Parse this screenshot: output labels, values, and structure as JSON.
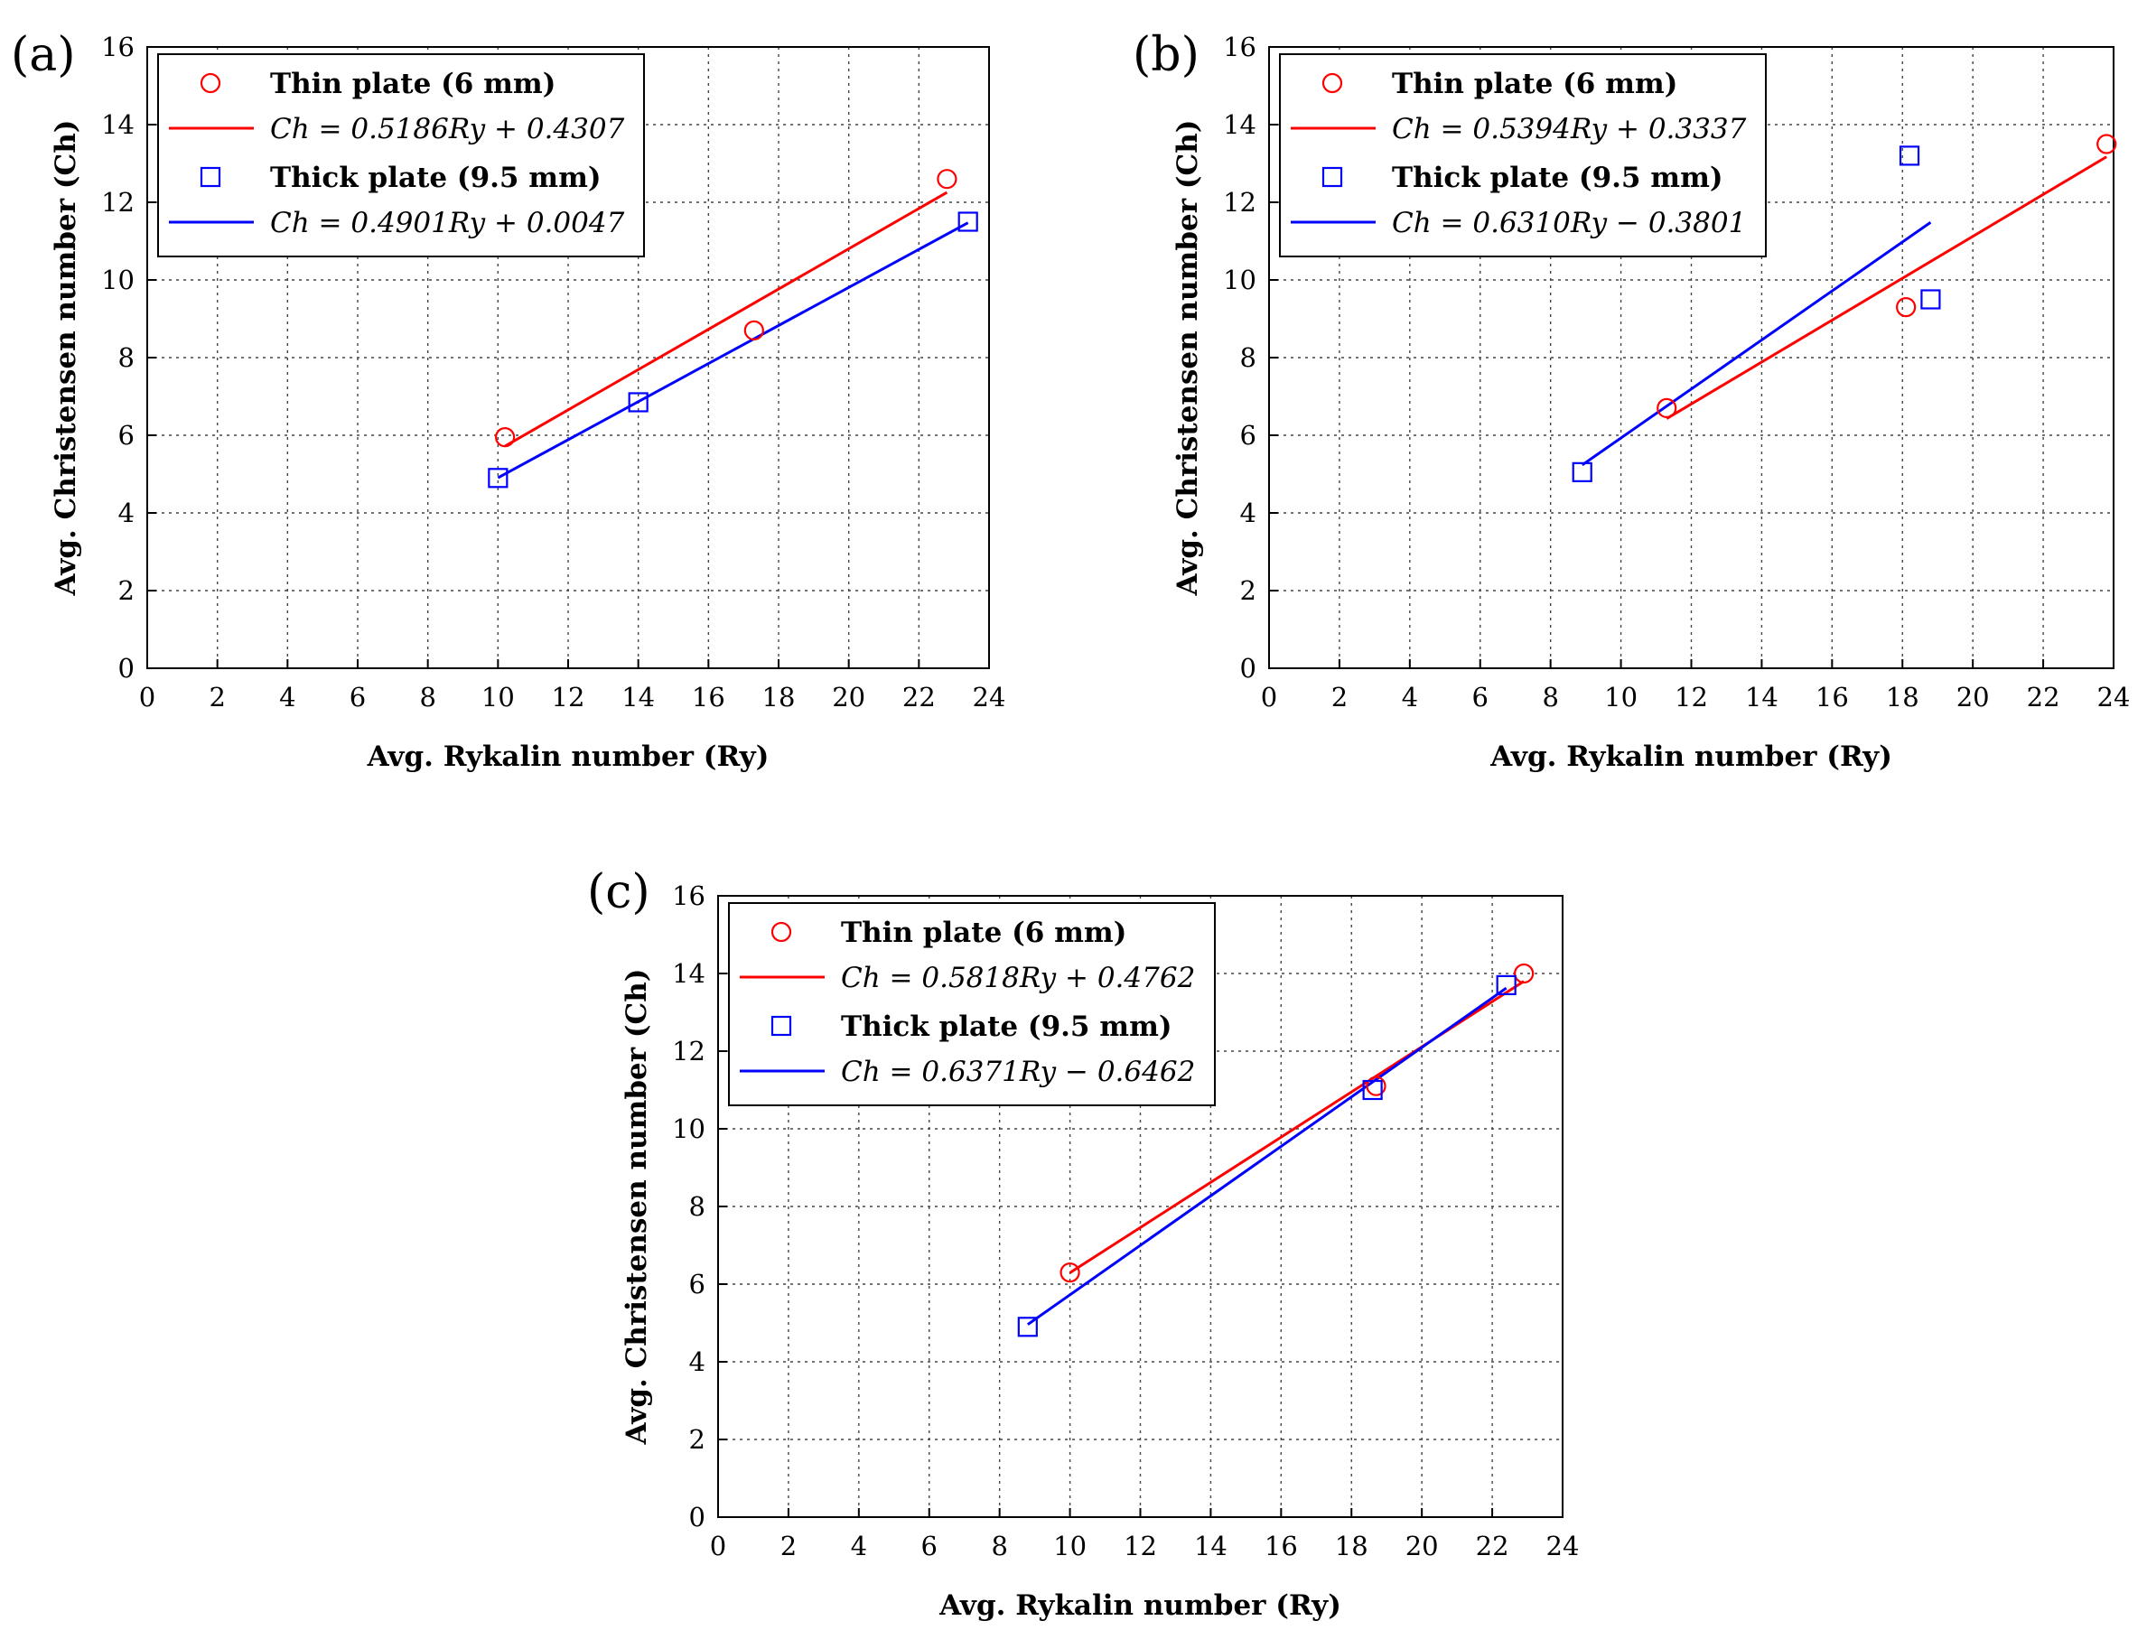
{
  "chart_data": [
    {
      "panel": "(a)",
      "type": "scatter",
      "xlabel": "Avg. Rykalin number (Ry)",
      "ylabel": "Avg. Christensen number (Ch)",
      "xlim": [
        0,
        24
      ],
      "ylim": [
        0,
        16
      ],
      "xticks": [
        0,
        2,
        4,
        6,
        8,
        10,
        12,
        14,
        16,
        18,
        20,
        22,
        24
      ],
      "yticks": [
        0,
        2,
        4,
        6,
        8,
        10,
        12,
        14,
        16
      ],
      "grid": true,
      "legend_position": "top-left",
      "series": [
        {
          "name": "Thin plate (6 mm)",
          "marker": "circle",
          "color": "#ff0000",
          "x": [
            10.2,
            17.3,
            22.8
          ],
          "y": [
            5.95,
            8.7,
            12.6
          ],
          "fit_label": "Ch = 0.5186Ry + 0.4307",
          "fit": {
            "slope": 0.5186,
            "intercept": 0.4307,
            "x_range": [
              10.2,
              22.8
            ]
          }
        },
        {
          "name": "Thick plate (9.5 mm)",
          "marker": "square",
          "color": "#0000ff",
          "x": [
            10.0,
            14.0,
            23.4
          ],
          "y": [
            4.9,
            6.85,
            11.5
          ],
          "fit_label": "Ch = 0.4901Ry + 0.0047",
          "fit": {
            "slope": 0.4901,
            "intercept": 0.0047,
            "x_range": [
              10.0,
              23.4
            ]
          }
        }
      ]
    },
    {
      "panel": "(b)",
      "type": "scatter",
      "xlabel": "Avg. Rykalin number (Ry)",
      "ylabel": "Avg. Christensen number (Ch)",
      "xlim": [
        0,
        24
      ],
      "ylim": [
        0,
        16
      ],
      "xticks": [
        0,
        2,
        4,
        6,
        8,
        10,
        12,
        14,
        16,
        18,
        20,
        22,
        24
      ],
      "yticks": [
        0,
        2,
        4,
        6,
        8,
        10,
        12,
        14,
        16
      ],
      "grid": true,
      "legend_position": "top-left",
      "series": [
        {
          "name": "Thin plate (6 mm)",
          "marker": "circle",
          "color": "#ff0000",
          "x": [
            11.3,
            18.1,
            23.8
          ],
          "y": [
            6.7,
            9.3,
            13.5
          ],
          "fit_label": "Ch = 0.5394Ry + 0.3337",
          "fit": {
            "slope": 0.5394,
            "intercept": 0.3337,
            "x_range": [
              11.3,
              23.8
            ]
          }
        },
        {
          "name": "Thick plate (9.5 mm)",
          "marker": "square",
          "color": "#0000ff",
          "x": [
            8.9,
            18.2,
            18.8
          ],
          "y": [
            5.05,
            13.2,
            9.5
          ],
          "fit_label": "Ch = 0.6310Ry − 0.3801",
          "fit": {
            "slope": 0.631,
            "intercept": -0.3801,
            "x_range": [
              8.9,
              18.8
            ]
          }
        }
      ]
    },
    {
      "panel": "(c)",
      "type": "scatter",
      "xlabel": "Avg. Rykalin number (Ry)",
      "ylabel": "Avg. Christensen number (Ch)",
      "xlim": [
        0,
        24
      ],
      "ylim": [
        0,
        16
      ],
      "xticks": [
        0,
        2,
        4,
        6,
        8,
        10,
        12,
        14,
        16,
        18,
        20,
        22,
        24
      ],
      "yticks": [
        0,
        2,
        4,
        6,
        8,
        10,
        12,
        14,
        16
      ],
      "grid": true,
      "legend_position": "top-left",
      "series": [
        {
          "name": "Thin plate (6 mm)",
          "marker": "circle",
          "color": "#ff0000",
          "x": [
            10.0,
            18.7,
            22.9
          ],
          "y": [
            6.3,
            11.1,
            14.0
          ],
          "fit_label": "Ch = 0.5818Ry + 0.4762",
          "fit": {
            "slope": 0.5818,
            "intercept": 0.4762,
            "x_range": [
              10.0,
              22.9
            ]
          }
        },
        {
          "name": "Thick plate (9.5 mm)",
          "marker": "square",
          "color": "#0000ff",
          "x": [
            8.8,
            18.6,
            22.4
          ],
          "y": [
            4.9,
            11.0,
            13.7
          ],
          "fit_label": "Ch = 0.6371Ry − 0.6462",
          "fit": {
            "slope": 0.6371,
            "intercept": -0.6462,
            "x_range": [
              8.8,
              22.4
            ]
          }
        }
      ]
    }
  ]
}
